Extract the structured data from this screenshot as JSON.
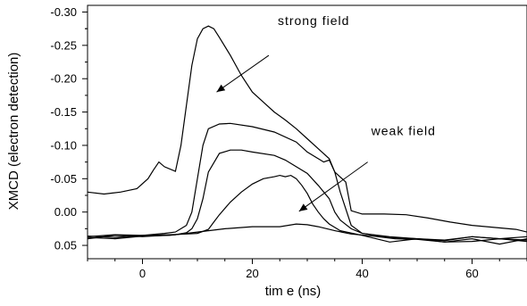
{
  "chart_data": {
    "type": "line",
    "title": "",
    "xlabel": "tim e (ns)",
    "ylabel": "XMCD (electron detection)",
    "xlim": [
      -10,
      70
    ],
    "ylim": [
      0.07,
      -0.31
    ],
    "y_axis_inverted": true,
    "grid": false,
    "x_ticks": [
      0,
      20,
      40,
      60
    ],
    "y_ticks": [
      0.05,
      0.0,
      -0.05,
      -0.1,
      -0.15,
      -0.2,
      -0.25,
      -0.3
    ],
    "x_tick_labels": [
      "0",
      "20",
      "40",
      "60"
    ],
    "y_tick_labels": [
      "0.05",
      "0.00",
      "-0.05",
      "-0.10",
      "-0.15",
      "-0.20",
      "-0.25",
      "-0.30"
    ],
    "annotations": [
      {
        "text": "strong field",
        "arrow_from": [
          23,
          -0.235
        ],
        "arrow_to": [
          13.5,
          -0.18
        ]
      },
      {
        "text": "weak field",
        "arrow_from": [
          41,
          -0.075
        ],
        "arrow_to": [
          28.5,
          -0.001
        ]
      }
    ],
    "series": [
      {
        "x": [
          -10,
          -7,
          -4,
          -1,
          1,
          2,
          3,
          4,
          6,
          7,
          8,
          9,
          10,
          11,
          12,
          13,
          14,
          16,
          18,
          20,
          22,
          24,
          26,
          28,
          30,
          32,
          34,
          35,
          37,
          38,
          40,
          44,
          48,
          52,
          56,
          60,
          64,
          68,
          70
        ],
        "y": [
          -0.03,
          -0.027,
          -0.03,
          -0.035,
          -0.05,
          -0.063,
          -0.075,
          -0.068,
          -0.061,
          -0.1,
          -0.16,
          -0.22,
          -0.26,
          -0.275,
          -0.279,
          -0.275,
          -0.262,
          -0.235,
          -0.205,
          -0.18,
          -0.165,
          -0.15,
          -0.138,
          -0.125,
          -0.11,
          -0.095,
          -0.08,
          -0.06,
          -0.045,
          -0.002,
          0.003,
          0.003,
          0.004,
          0.009,
          0.015,
          0.02,
          0.023,
          0.026,
          0.03
        ]
      },
      {
        "x": [
          -10,
          -5,
          0,
          4,
          6,
          8,
          9,
          10,
          11,
          12,
          14,
          16,
          20,
          24,
          28,
          30,
          32,
          33,
          34,
          35,
          36,
          38,
          40,
          45,
          50,
          55,
          60,
          65,
          70
        ],
        "y": [
          0.037,
          0.034,
          0.035,
          0.032,
          0.03,
          0.02,
          0.0,
          -0.05,
          -0.1,
          -0.125,
          -0.132,
          -0.133,
          -0.128,
          -0.12,
          -0.105,
          -0.09,
          -0.08,
          -0.075,
          -0.078,
          -0.06,
          -0.03,
          0.02,
          0.032,
          0.037,
          0.04,
          0.042,
          0.037,
          0.04,
          0.037
        ]
      },
      {
        "x": [
          -10,
          -5,
          0,
          4,
          6,
          8,
          9,
          10,
          11,
          12,
          14,
          16,
          18,
          20,
          24,
          26,
          28,
          30,
          32,
          34,
          35,
          36,
          38,
          40,
          45,
          50,
          55,
          60,
          65,
          70
        ],
        "y": [
          0.04,
          0.035,
          0.037,
          0.035,
          0.034,
          0.031,
          0.025,
          0.01,
          -0.02,
          -0.06,
          -0.088,
          -0.093,
          -0.093,
          -0.09,
          -0.085,
          -0.078,
          -0.068,
          -0.058,
          -0.04,
          -0.02,
          0.0,
          0.012,
          0.025,
          0.032,
          0.038,
          0.04,
          0.045,
          0.04,
          0.048,
          0.04
        ]
      },
      {
        "x": [
          -10,
          -5,
          0,
          5,
          8,
          10,
          12,
          13,
          14,
          16,
          18,
          20,
          22,
          24,
          25,
          26,
          27,
          28,
          29,
          30,
          31,
          32,
          33,
          34,
          36,
          40,
          45,
          50,
          55,
          60,
          65,
          70
        ],
        "y": [
          0.036,
          0.038,
          0.035,
          0.034,
          0.033,
          0.032,
          0.026,
          0.015,
          0.004,
          -0.015,
          -0.03,
          -0.042,
          -0.05,
          -0.053,
          -0.055,
          -0.053,
          -0.055,
          -0.05,
          -0.04,
          -0.028,
          -0.012,
          0.0,
          0.01,
          0.018,
          0.028,
          0.035,
          0.045,
          0.04,
          0.043,
          0.037,
          0.04,
          0.044
        ]
      },
      {
        "x": [
          -10,
          -5,
          0,
          5,
          10,
          15,
          20,
          25,
          28,
          30,
          32,
          35,
          38,
          42,
          46,
          50,
          55,
          60,
          65,
          70
        ],
        "y": [
          0.038,
          0.04,
          0.036,
          0.035,
          0.03,
          0.025,
          0.022,
          0.022,
          0.018,
          0.019,
          0.022,
          0.028,
          0.033,
          0.036,
          0.04,
          0.041,
          0.045,
          0.044,
          0.04,
          0.042
        ]
      }
    ]
  }
}
